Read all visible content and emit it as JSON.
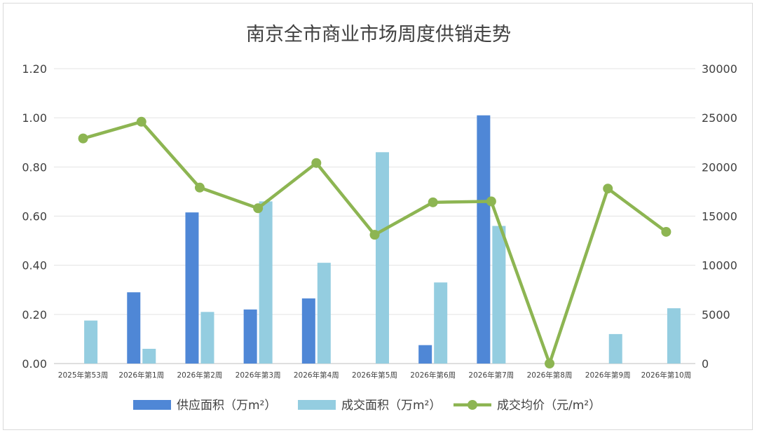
{
  "chart_data": {
    "type": "bar",
    "title": "南京全市商业市场周度供销走势",
    "categories": [
      "2025年第53周",
      "2026年第1周",
      "2026年第2周",
      "2026年第3周",
      "2026年第4周",
      "2026年第5周",
      "2026年第6周",
      "2026年第7周",
      "2026年第8周",
      "2026年第9周",
      "2026年第10周"
    ],
    "left_axis": {
      "ylim": [
        0,
        1.2
      ],
      "ticks": [
        "0.00",
        "0.20",
        "0.40",
        "0.60",
        "0.80",
        "1.00",
        "1.20"
      ]
    },
    "right_axis": {
      "ylim": [
        0,
        30000
      ],
      "ticks": [
        "0",
        "5000",
        "10000",
        "15000",
        "20000",
        "25000",
        "30000"
      ]
    },
    "grid": true,
    "legend_position": "bottom",
    "series": [
      {
        "name": "供应面积（万m²）",
        "type": "bar",
        "axis": "left",
        "color": "#4f87d6",
        "values": [
          null,
          0.29,
          0.615,
          0.22,
          0.265,
          null,
          0.075,
          1.01,
          null,
          null,
          null
        ]
      },
      {
        "name": "成交面积（万m²）",
        "type": "bar",
        "axis": "left",
        "color": "#94cde0",
        "values": [
          0.175,
          0.06,
          0.21,
          0.66,
          0.41,
          0.86,
          0.33,
          0.56,
          null,
          0.12,
          0.225
        ]
      },
      {
        "name": "成交均价（元/m²）",
        "type": "line",
        "axis": "right",
        "color": "#8db552",
        "values": [
          22900,
          24600,
          17900,
          15800,
          20400,
          13100,
          16400,
          16500,
          0,
          17800,
          13400
        ]
      }
    ]
  }
}
